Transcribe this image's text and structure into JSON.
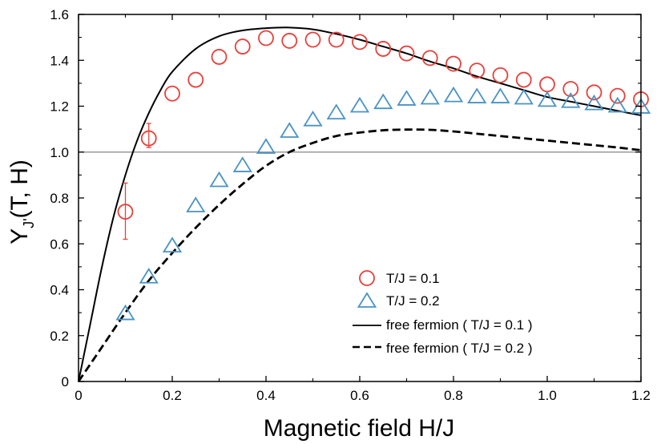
{
  "chart_data": {
    "type": "scatter",
    "xlabel": "Magnetic field H/J",
    "ylabel_main": "Y",
    "ylabel_sub": "J'",
    "ylabel_rest": "(T, H)",
    "xlim": [
      0,
      1.2
    ],
    "ylim": [
      0,
      1.6
    ],
    "xticks": [
      "0",
      "0.2",
      "0.4",
      "0.6",
      "0.8",
      "1.0",
      "1.2"
    ],
    "yticks": [
      "0",
      "0.2",
      "0.4",
      "0.6",
      "0.8",
      "1.0",
      "1.2",
      "1.4",
      "1.6"
    ],
    "reference_line_y": 1.0,
    "legend_position": "lower-right",
    "colors": {
      "red": "#e8403a",
      "blue": "#4a93c4",
      "black": "#000000",
      "gray": "#999999"
    },
    "series": [
      {
        "name": "T/J = 0.1",
        "marker": "circle",
        "x": [
          0.1,
          0.15,
          0.2,
          0.25,
          0.3,
          0.35,
          0.4,
          0.45,
          0.5,
          0.55,
          0.6,
          0.65,
          0.7,
          0.75,
          0.8,
          0.85,
          0.9,
          0.95,
          1.0,
          1.05,
          1.1,
          1.15,
          1.2
        ],
        "y": [
          0.74,
          1.06,
          1.255,
          1.315,
          1.415,
          1.46,
          1.497,
          1.485,
          1.49,
          1.49,
          1.48,
          1.45,
          1.43,
          1.41,
          1.385,
          1.355,
          1.335,
          1.315,
          1.295,
          1.275,
          1.26,
          1.245,
          1.23
        ],
        "error_bars": [
          {
            "x": 0.1,
            "y_low": 0.62,
            "y_high": 0.865
          },
          {
            "x": 0.15,
            "y_low": 1.02,
            "y_high": 1.125
          }
        ]
      },
      {
        "name": "T/J = 0.2",
        "marker": "triangle",
        "x": [
          0.1,
          0.15,
          0.2,
          0.25,
          0.3,
          0.35,
          0.4,
          0.45,
          0.5,
          0.55,
          0.6,
          0.65,
          0.7,
          0.75,
          0.8,
          0.85,
          0.9,
          0.95,
          1.0,
          1.05,
          1.1,
          1.15,
          1.2
        ],
        "y": [
          0.295,
          0.455,
          0.59,
          0.765,
          0.875,
          0.94,
          1.02,
          1.09,
          1.14,
          1.17,
          1.2,
          1.215,
          1.23,
          1.235,
          1.245,
          1.24,
          1.24,
          1.235,
          1.225,
          1.22,
          1.21,
          1.2,
          1.195
        ]
      },
      {
        "name": "free fermion ( T/J = 0.1 )",
        "line": "solid",
        "x": [
          0,
          0.025,
          0.05,
          0.075,
          0.1,
          0.125,
          0.15,
          0.175,
          0.2,
          0.25,
          0.3,
          0.35,
          0.4,
          0.45,
          0.5,
          0.55,
          0.6,
          0.65,
          0.7,
          0.75,
          0.8,
          0.85,
          0.9,
          0.95,
          1.0,
          1.05,
          1.1,
          1.15,
          1.2
        ],
        "y": [
          0,
          0.25,
          0.5,
          0.72,
          0.9,
          1.05,
          1.17,
          1.27,
          1.35,
          1.45,
          1.505,
          1.53,
          1.54,
          1.543,
          1.535,
          1.515,
          1.49,
          1.46,
          1.43,
          1.395,
          1.365,
          1.33,
          1.3,
          1.27,
          1.24,
          1.22,
          1.2,
          1.18,
          1.16
        ]
      },
      {
        "name": "free fermion ( T/J = 0.2 )",
        "line": "dashed",
        "x": [
          0,
          0.05,
          0.1,
          0.15,
          0.2,
          0.25,
          0.3,
          0.35,
          0.4,
          0.45,
          0.5,
          0.55,
          0.6,
          0.65,
          0.7,
          0.75,
          0.8,
          0.85,
          0.9,
          0.95,
          1.0,
          1.05,
          1.1,
          1.15,
          1.2
        ],
        "y": [
          0,
          0.15,
          0.3,
          0.44,
          0.56,
          0.67,
          0.77,
          0.86,
          0.94,
          1.0,
          1.04,
          1.07,
          1.085,
          1.095,
          1.098,
          1.097,
          1.09,
          1.08,
          1.07,
          1.06,
          1.05,
          1.04,
          1.03,
          1.02,
          1.008
        ]
      }
    ]
  }
}
